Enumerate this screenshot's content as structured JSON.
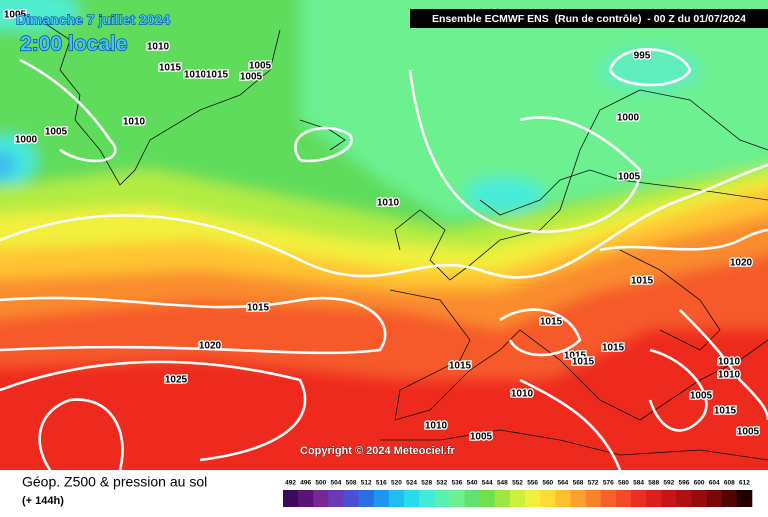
{
  "header": {
    "date": "Dimanche 7 juillet 2024",
    "time": "2:00 locale",
    "run": "Ensemble ECMWF ENS  (Run de contrôle)  - 00 Z du 01/07/2024"
  },
  "map": {
    "isobar_labels": [
      "1005",
      "1010",
      "1015",
      "1010",
      "1015",
      "1005",
      "1005",
      "1010",
      "1005",
      "1000",
      "995",
      "1000",
      "1005",
      "1010",
      "1020",
      "1015",
      "1015",
      "1015",
      "1020",
      "1015",
      "1015",
      "1015",
      "1015",
      "1010",
      "1025",
      "1010",
      "1010",
      "1005",
      "1015",
      "1010",
      "1005",
      "1005"
    ]
  },
  "copyright": "Copyright © 2024 Meteociel.fr",
  "legend": {
    "title": "Géop. Z500 & pression au sol",
    "lead": "(+ 144h)",
    "ticks": [
      492,
      496,
      500,
      504,
      508,
      512,
      516,
      520,
      524,
      528,
      532,
      536,
      540,
      544,
      548,
      552,
      556,
      560,
      564,
      568,
      572,
      576,
      580,
      584,
      588,
      592,
      596,
      600,
      604,
      608,
      612
    ],
    "colors": [
      "#3c0a5a",
      "#5a1478",
      "#782896",
      "#6a3cb4",
      "#4a50d2",
      "#2a6ee6",
      "#1e96f0",
      "#20bef0",
      "#28dcf0",
      "#40ecd8",
      "#5af0b0",
      "#6ef090",
      "#64e070",
      "#70e050",
      "#9ce840",
      "#c8f03c",
      "#f0f03c",
      "#ffdc32",
      "#ffc030",
      "#fca02e",
      "#fa822c",
      "#f8622a",
      "#f24a26",
      "#ea3020",
      "#dc1e1c",
      "#c81418",
      "#b01012",
      "#960c0e",
      "#780808",
      "#500404",
      "#200000"
    ]
  }
}
